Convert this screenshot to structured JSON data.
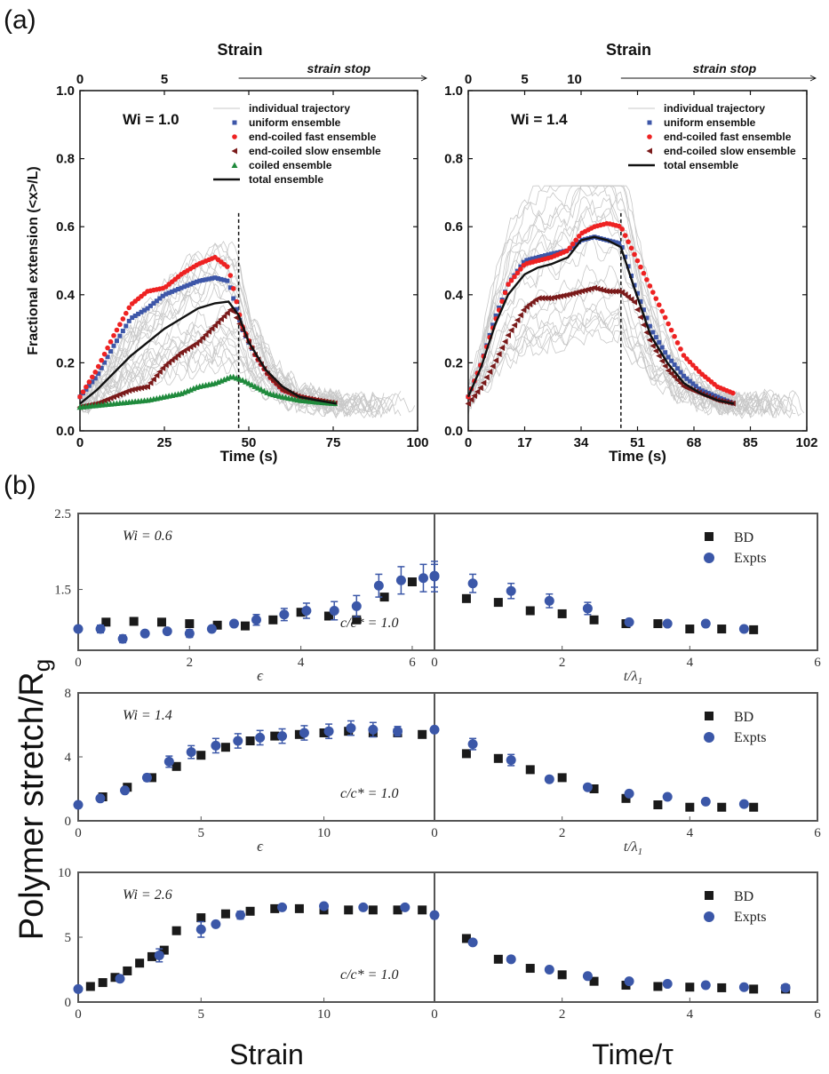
{
  "figure": {
    "panel_a_label": "(a)",
    "panel_b_label": "(b)",
    "strain_stop_text": "strain stop",
    "fig_b_ylabel": "Polymer stretch/R",
    "fig_b_ylabel_sub": "g",
    "fig_b_xlabel_left": "Strain",
    "fig_b_xlabel_right": "Time/τ",
    "colors": {
      "gray": "#c8c8c8",
      "blue": "#3d56a8",
      "red": "#ee2222",
      "brown": "#7a1a1a",
      "green": "#1f8a3c",
      "black": "#111111",
      "frame_b": "#555555",
      "bd": "#1a1a1a",
      "expt": "#3b57a8"
    }
  },
  "chart_data": [
    {
      "type": "line",
      "panel": "a-left",
      "annotation": "Wi = 1.0",
      "top_axis_title": "Strain",
      "top_ticks": [
        {
          "t": 0,
          "label": "0"
        },
        {
          "t": 25,
          "label": "5"
        }
      ],
      "strain_stop_t": 47,
      "xlabel": "Time (s)",
      "ylabel": "Fractional extension (<x>/L)",
      "xlim": [
        0,
        100
      ],
      "ylim": [
        0,
        1.0
      ],
      "xticks": [
        0,
        25,
        50,
        75,
        100
      ],
      "yticks": [
        "0.0",
        "0.2",
        "0.4",
        "0.6",
        "0.8",
        "1.0"
      ],
      "legend": [
        "individual trajectory",
        "uniform ensemble",
        "end-coiled fast ensemble",
        "end-coiled slow ensemble",
        "coiled ensemble",
        "total ensemble"
      ],
      "series": [
        {
          "name": "uniform ensemble",
          "marker": "square",
          "color": "blue",
          "x": [
            0,
            5,
            10,
            15,
            20,
            25,
            30,
            35,
            40,
            44,
            48,
            52,
            56,
            60,
            65,
            70,
            76
          ],
          "y": [
            0.1,
            0.16,
            0.25,
            0.33,
            0.36,
            0.4,
            0.42,
            0.44,
            0.45,
            0.44,
            0.3,
            0.22,
            0.16,
            0.12,
            0.1,
            0.09,
            0.08
          ]
        },
        {
          "name": "end-coiled fast ensemble",
          "marker": "circle",
          "color": "red",
          "x": [
            0,
            5,
            10,
            15,
            20,
            25,
            30,
            35,
            40,
            44,
            48,
            52,
            56,
            60,
            65,
            70,
            76
          ],
          "y": [
            0.1,
            0.18,
            0.28,
            0.37,
            0.41,
            0.42,
            0.46,
            0.49,
            0.51,
            0.48,
            0.31,
            0.22,
            0.16,
            0.12,
            0.1,
            0.09,
            0.08
          ]
        },
        {
          "name": "end-coiled slow ensemble",
          "marker": "triangle-left",
          "color": "brown",
          "x": [
            0,
            5,
            10,
            15,
            20,
            25,
            30,
            35,
            40,
            45,
            48,
            52,
            56,
            60,
            65,
            70,
            76
          ],
          "y": [
            0.07,
            0.08,
            0.1,
            0.12,
            0.13,
            0.19,
            0.23,
            0.26,
            0.31,
            0.36,
            0.3,
            0.22,
            0.16,
            0.12,
            0.1,
            0.09,
            0.08
          ]
        },
        {
          "name": "coiled ensemble",
          "marker": "triangle-up",
          "color": "green",
          "x": [
            0,
            5,
            10,
            15,
            20,
            25,
            30,
            35,
            40,
            45,
            48,
            52,
            56,
            60,
            65,
            70,
            76
          ],
          "y": [
            0.07,
            0.075,
            0.08,
            0.085,
            0.09,
            0.1,
            0.11,
            0.13,
            0.14,
            0.16,
            0.15,
            0.13,
            0.11,
            0.1,
            0.09,
            0.085,
            0.08
          ]
        },
        {
          "name": "total ensemble",
          "marker": "line",
          "color": "black",
          "x": [
            0,
            5,
            10,
            15,
            20,
            25,
            30,
            35,
            40,
            44,
            47,
            50,
            55,
            60,
            65,
            70,
            76
          ],
          "y": [
            0.08,
            0.12,
            0.17,
            0.22,
            0.26,
            0.3,
            0.33,
            0.36,
            0.375,
            0.38,
            0.34,
            0.26,
            0.18,
            0.13,
            0.1,
            0.09,
            0.08
          ]
        }
      ]
    },
    {
      "type": "line",
      "panel": "a-right",
      "annotation": "Wi = 1.4",
      "top_axis_title": "Strain",
      "top_ticks": [
        {
          "t": 0,
          "label": "0"
        },
        {
          "t": 17,
          "label": "5"
        },
        {
          "t": 32,
          "label": "10"
        }
      ],
      "strain_stop_t": 46,
      "xlabel": "Time (s)",
      "ylabel": "",
      "xlim": [
        0,
        102
      ],
      "ylim": [
        0,
        1.0
      ],
      "xticks": [
        0,
        17,
        34,
        51,
        68,
        85,
        102
      ],
      "yticks": [
        "0.0",
        "0.2",
        "0.4",
        "0.6",
        "0.8",
        "1.0"
      ],
      "legend": [
        "individual trajectory",
        "uniform ensemble",
        "end-coiled fast ensemble",
        "end-coiled slow ensemble",
        "total ensemble"
      ],
      "series": [
        {
          "name": "uniform ensemble",
          "marker": "square",
          "color": "blue",
          "x": [
            0,
            4,
            8,
            12,
            17,
            21,
            25,
            30,
            34,
            38,
            42,
            46,
            50,
            55,
            60,
            65,
            70,
            75,
            80
          ],
          "y": [
            0.1,
            0.2,
            0.33,
            0.43,
            0.5,
            0.51,
            0.52,
            0.53,
            0.56,
            0.57,
            0.56,
            0.55,
            0.43,
            0.3,
            0.22,
            0.16,
            0.12,
            0.1,
            0.08
          ]
        },
        {
          "name": "end-coiled fast ensemble",
          "marker": "circle",
          "color": "red",
          "x": [
            0,
            4,
            8,
            12,
            17,
            21,
            25,
            30,
            34,
            38,
            42,
            46,
            50,
            55,
            60,
            65,
            70,
            75,
            80
          ],
          "y": [
            0.1,
            0.2,
            0.32,
            0.43,
            0.49,
            0.5,
            0.51,
            0.53,
            0.58,
            0.6,
            0.61,
            0.6,
            0.52,
            0.42,
            0.32,
            0.22,
            0.17,
            0.13,
            0.11
          ]
        },
        {
          "name": "end-coiled slow ensemble",
          "marker": "triangle-left",
          "color": "brown",
          "x": [
            0,
            4,
            8,
            12,
            17,
            21,
            25,
            30,
            34,
            38,
            42,
            46,
            50,
            55,
            60,
            65,
            70,
            75,
            80
          ],
          "y": [
            0.08,
            0.13,
            0.2,
            0.28,
            0.36,
            0.39,
            0.39,
            0.4,
            0.41,
            0.42,
            0.41,
            0.41,
            0.38,
            0.26,
            0.18,
            0.13,
            0.11,
            0.09,
            0.08
          ]
        },
        {
          "name": "total ensemble",
          "marker": "line",
          "color": "black",
          "x": [
            0,
            4,
            8,
            12,
            17,
            21,
            25,
            30,
            34,
            38,
            42,
            46,
            50,
            55,
            60,
            65,
            70,
            75,
            80
          ],
          "y": [
            0.1,
            0.19,
            0.31,
            0.4,
            0.46,
            0.48,
            0.49,
            0.51,
            0.56,
            0.57,
            0.56,
            0.54,
            0.42,
            0.28,
            0.2,
            0.14,
            0.11,
            0.09,
            0.08
          ]
        }
      ]
    },
    {
      "type": "scatter",
      "panel": "b-row1",
      "annotation": "Wi = 0.6",
      "concentration": "c/c* = 1.0",
      "ylim": [
        0.7,
        2.5
      ],
      "yticks": [
        {
          "v": 1.5,
          "label": "1.5"
        },
        {
          "v": 2.5,
          "label": "2.5"
        }
      ],
      "left_xlim": [
        0,
        6.4
      ],
      "left_xticks": [
        0,
        2,
        4,
        6
      ],
      "left_xlabel": "ϵ",
      "right_xlim": [
        0,
        6
      ],
      "right_xticks": [
        0,
        2,
        4,
        6
      ],
      "right_xlabel": "t/λ",
      "right_xlabel_sub": "1",
      "legend": [
        "BD",
        "Expts"
      ],
      "bd_left": {
        "x": [
          0.5,
          1.0,
          1.5,
          2.0,
          2.5,
          3.0,
          3.5,
          4.0,
          4.5,
          5.0,
          5.5,
          6.0
        ],
        "y": [
          1.07,
          1.08,
          1.07,
          1.05,
          1.03,
          1.02,
          1.1,
          1.2,
          1.15,
          1.1,
          1.4,
          1.6
        ]
      },
      "exp_left": {
        "x": [
          0,
          0.4,
          0.8,
          1.2,
          1.6,
          2.0,
          2.4,
          2.8,
          3.2,
          3.7,
          4.1,
          4.6,
          5.0,
          5.4,
          5.8,
          6.2,
          6.4
        ],
        "y": [
          0.98,
          0.98,
          0.85,
          0.92,
          0.95,
          0.92,
          0.98,
          1.05,
          1.1,
          1.17,
          1.22,
          1.22,
          1.28,
          1.55,
          1.62,
          1.65,
          1.67
        ],
        "err": [
          0,
          0.05,
          0.05,
          0,
          0,
          0.05,
          0,
          0,
          0.07,
          0.08,
          0.1,
          0.12,
          0.14,
          0.15,
          0.18,
          0.18,
          0.2
        ]
      },
      "bd_right": {
        "x": [
          0.5,
          1.0,
          1.5,
          2.0,
          2.5,
          3.0,
          3.5,
          4.0,
          4.5,
          5.0
        ],
        "y": [
          1.38,
          1.33,
          1.22,
          1.18,
          1.1,
          1.05,
          1.05,
          0.98,
          0.98,
          0.97
        ]
      },
      "exp_right": {
        "x": [
          0,
          0.6,
          1.2,
          1.8,
          2.4,
          3.05,
          3.65,
          4.25,
          4.85
        ],
        "y": [
          1.68,
          1.58,
          1.48,
          1.35,
          1.25,
          1.07,
          1.05,
          1.05,
          0.98
        ],
        "err": [
          0.15,
          0.12,
          0.1,
          0.09,
          0.08,
          0,
          0,
          0,
          0
        ]
      }
    },
    {
      "type": "scatter",
      "panel": "b-row2",
      "annotation": "Wi = 1.4",
      "concentration": "c/c* = 1.0",
      "ylim": [
        0,
        8
      ],
      "yticks": [
        {
          "v": 0,
          "label": "0"
        },
        {
          "v": 4,
          "label": "4"
        },
        {
          "v": 8,
          "label": "8"
        }
      ],
      "left_xlim": [
        0,
        14.5
      ],
      "left_xticks": [
        0,
        5,
        10
      ],
      "left_xlabel": "ϵ",
      "right_xlim": [
        0,
        6
      ],
      "right_xticks": [
        0,
        2,
        4,
        6
      ],
      "right_xlabel": "t/λ",
      "right_xlabel_sub": "1",
      "legend": [
        "BD",
        "Expts"
      ],
      "bd_left": {
        "x": [
          1,
          2,
          3,
          4,
          5,
          6,
          7,
          8,
          9,
          10,
          11,
          12,
          13,
          14
        ],
        "y": [
          1.5,
          2.1,
          2.7,
          3.4,
          4.1,
          4.6,
          5.0,
          5.3,
          5.4,
          5.5,
          5.6,
          5.5,
          5.5,
          5.4
        ]
      },
      "exp_left": {
        "x": [
          0,
          0.9,
          1.9,
          2.8,
          3.7,
          4.6,
          5.6,
          6.5,
          7.4,
          8.3,
          9.2,
          10.2,
          11.1,
          12.0,
          13.0,
          14.5
        ],
        "y": [
          1.0,
          1.4,
          1.9,
          2.7,
          3.7,
          4.3,
          4.7,
          5.0,
          5.2,
          5.3,
          5.5,
          5.6,
          5.8,
          5.7,
          5.6,
          5.7
        ],
        "err": [
          0,
          0,
          0,
          0.2,
          0.35,
          0.4,
          0.45,
          0.45,
          0.45,
          0.45,
          0.45,
          0.45,
          0.45,
          0.45,
          0.3,
          0
        ]
      },
      "bd_right": {
        "x": [
          0.5,
          1.0,
          1.5,
          2.0,
          2.5,
          3.0,
          3.5,
          4.0,
          4.5,
          5.0
        ],
        "y": [
          4.2,
          3.9,
          3.2,
          2.7,
          2.0,
          1.4,
          1.0,
          0.85,
          0.85,
          0.85
        ]
      },
      "exp_right": {
        "x": [
          0.6,
          1.2,
          1.8,
          2.4,
          3.05,
          3.65,
          4.25,
          4.85
        ],
        "y": [
          4.8,
          3.8,
          2.6,
          2.1,
          1.7,
          1.5,
          1.2,
          1.05
        ],
        "err": [
          0.35,
          0.35,
          0,
          0,
          0,
          0,
          0,
          0
        ]
      }
    },
    {
      "type": "scatter",
      "panel": "b-row3",
      "annotation": "Wi = 2.6",
      "concentration": "c/c* = 1.0",
      "ylim": [
        0,
        10
      ],
      "yticks": [
        {
          "v": 0,
          "label": "0"
        },
        {
          "v": 5,
          "label": "5"
        },
        {
          "v": 10,
          "label": "10"
        }
      ],
      "left_xlim": [
        0,
        14.5
      ],
      "left_xticks": [
        0,
        5,
        10
      ],
      "left_xlabel": "",
      "right_xlim": [
        0,
        6
      ],
      "right_xticks": [
        0,
        2,
        4,
        6
      ],
      "right_xlabel": "",
      "right_xlabel_sub": "",
      "legend": [
        "BD",
        "Expts"
      ],
      "bd_left": {
        "x": [
          0.5,
          1,
          1.5,
          2,
          2.5,
          3,
          3.5,
          4,
          5,
          6,
          7,
          8,
          9,
          10,
          11,
          12,
          13,
          14
        ],
        "y": [
          1.2,
          1.5,
          1.9,
          2.4,
          3.0,
          3.5,
          4.0,
          5.5,
          6.5,
          6.8,
          7.0,
          7.2,
          7.2,
          7.1,
          7.1,
          7.1,
          7.1,
          7.1
        ]
      },
      "exp_left": {
        "x": [
          0,
          1.7,
          3.3,
          5.0,
          5.6,
          6.6,
          8.3,
          10.0,
          11.6,
          13.3,
          14.5
        ],
        "y": [
          1.0,
          1.8,
          3.6,
          5.6,
          6.0,
          6.7,
          7.3,
          7.4,
          7.3,
          7.3,
          6.7
        ],
        "err": [
          0,
          0,
          0.5,
          0.6,
          0,
          0.3,
          0,
          0,
          0,
          0,
          0
        ]
      },
      "bd_right": {
        "x": [
          0.5,
          1.0,
          1.5,
          2.0,
          2.5,
          3.0,
          3.5,
          4.0,
          4.5,
          5.0,
          5.5
        ],
        "y": [
          4.9,
          3.3,
          2.6,
          2.1,
          1.6,
          1.3,
          1.2,
          1.15,
          1.1,
          1.0,
          1.0
        ]
      },
      "exp_right": {
        "x": [
          0.6,
          1.2,
          1.8,
          2.4,
          3.05,
          3.65,
          4.25,
          4.85,
          5.5
        ],
        "y": [
          4.6,
          3.3,
          2.5,
          2.0,
          1.6,
          1.4,
          1.3,
          1.15,
          1.1
        ],
        "err": [
          0,
          0,
          0,
          0,
          0,
          0,
          0,
          0,
          0
        ]
      }
    }
  ]
}
